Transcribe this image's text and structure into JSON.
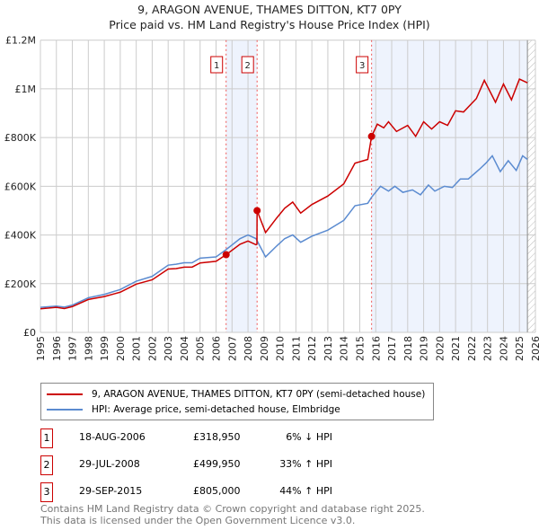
{
  "chart_data": {
    "type": "line",
    "title": "9, ARAGON AVENUE, THAMES DITTON, KT7 0PY",
    "subtitle": "Price paid vs. HM Land Registry's House Price Index (HPI)",
    "xlim": [
      1995,
      2026
    ],
    "ylim": [
      0,
      1200000
    ],
    "yticks": [
      {
        "v": 0,
        "label": "£0"
      },
      {
        "v": 200000,
        "label": "£200K"
      },
      {
        "v": 400000,
        "label": "£400K"
      },
      {
        "v": 600000,
        "label": "£600K"
      },
      {
        "v": 800000,
        "label": "£800K"
      },
      {
        "v": 1000000,
        "label": "£1M"
      },
      {
        "v": 1200000,
        "label": "£1.2M"
      }
    ],
    "xticks": [
      1995,
      1996,
      1997,
      1998,
      1999,
      2000,
      2001,
      2002,
      2003,
      2004,
      2005,
      2006,
      2007,
      2008,
      2009,
      2010,
      2011,
      2012,
      2013,
      2014,
      2015,
      2016,
      2017,
      2018,
      2019,
      2020,
      2021,
      2022,
      2023,
      2024,
      2025,
      2026
    ],
    "grid": true,
    "forecast_from": 2025.5,
    "shaded_ranges": [
      [
        2006.63,
        2008.57
      ],
      [
        2015.74,
        2025.5
      ]
    ],
    "series": [
      {
        "name": "9, ARAGON AVENUE, THAMES DITTON, KT7 0PY (semi-detached house)",
        "color": "#cc0000",
        "x": [
          1995,
          1996,
          1996.5,
          1997,
          1998,
          1999,
          2000,
          2001,
          2002,
          2003,
          2003.5,
          2004,
          2004.5,
          2005,
          2006,
          2006.63,
          2007.5,
          2008,
          2008.5,
          2008.56,
          2008.57,
          2009.1,
          2009.8,
          2010.3,
          2010.8,
          2011.3,
          2012,
          2013,
          2014,
          2014.7,
          2015.5,
          2015.74,
          2016.1,
          2016.5,
          2016.8,
          2017.3,
          2018,
          2018.5,
          2019,
          2019.5,
          2020,
          2020.5,
          2021,
          2021.5,
          2022.3,
          2022.8,
          2023.5,
          2024,
          2024.5,
          2025,
          2025.5
        ],
        "y": [
          97000,
          103000,
          98000,
          106000,
          135000,
          147000,
          165000,
          198000,
          216000,
          260000,
          262000,
          268000,
          268000,
          285000,
          292000,
          318950,
          362000,
          375000,
          360000,
          362000,
          499950,
          410000,
          470000,
          510000,
          535000,
          490000,
          525000,
          560000,
          610000,
          695000,
          710000,
          805000,
          855000,
          840000,
          865000,
          825000,
          850000,
          805000,
          865000,
          835000,
          865000,
          850000,
          910000,
          905000,
          960000,
          1035000,
          945000,
          1020000,
          955000,
          1040000,
          1025000
        ]
      },
      {
        "name": "HPI: Average price, semi-detached house, Elmbridge",
        "color": "#5b8bd0",
        "x": [
          1995,
          1996,
          1996.5,
          1997,
          1998,
          1999,
          2000,
          2001,
          2002,
          2003,
          2003.5,
          2004,
          2004.5,
          2005,
          2006,
          2006.63,
          2007.5,
          2008,
          2008.5,
          2009.1,
          2009.8,
          2010.3,
          2010.8,
          2011.3,
          2012,
          2013,
          2014,
          2014.7,
          2015.5,
          2015.74,
          2016.3,
          2016.8,
          2017.2,
          2017.7,
          2018.3,
          2018.8,
          2019.3,
          2019.7,
          2020.3,
          2020.8,
          2021.3,
          2021.8,
          2022.5,
          2022.9,
          2023.3,
          2023.8,
          2024.3,
          2024.8,
          2025.2,
          2025.5
        ],
        "y": [
          103000,
          108000,
          104000,
          112000,
          142000,
          156000,
          176000,
          210000,
          230000,
          276000,
          280000,
          286000,
          286000,
          305000,
          310000,
          340000,
          385000,
          400000,
          385000,
          310000,
          355000,
          385000,
          400000,
          370000,
          395000,
          420000,
          460000,
          520000,
          530000,
          555000,
          600000,
          580000,
          600000,
          575000,
          585000,
          565000,
          605000,
          580000,
          600000,
          595000,
          630000,
          630000,
          670000,
          695000,
          725000,
          660000,
          705000,
          665000,
          725000,
          710000
        ]
      }
    ],
    "sales": [
      {
        "n": "1",
        "x": 2006.63,
        "y": 318950
      },
      {
        "n": "2",
        "x": 2008.57,
        "y": 499950
      },
      {
        "n": "3",
        "x": 2015.74,
        "y": 805000
      }
    ]
  },
  "legend": {
    "red": "9, ARAGON AVENUE, THAMES DITTON, KT7 0PY (semi-detached house)",
    "blue": "HPI: Average price, semi-detached house, Elmbridge"
  },
  "table": [
    {
      "n": "1",
      "date": "18-AUG-2006",
      "price": "£318,950",
      "hpi": "6% ↓ HPI"
    },
    {
      "n": "2",
      "date": "29-JUL-2008",
      "price": "£499,950",
      "hpi": "33% ↑ HPI"
    },
    {
      "n": "3",
      "date": "29-SEP-2015",
      "price": "£805,000",
      "hpi": "44% ↑ HPI"
    }
  ],
  "footer": {
    "line1": "Contains HM Land Registry data © Crown copyright and database right 2025.",
    "line2": "This data is licensed under the Open Government Licence v3.0."
  }
}
